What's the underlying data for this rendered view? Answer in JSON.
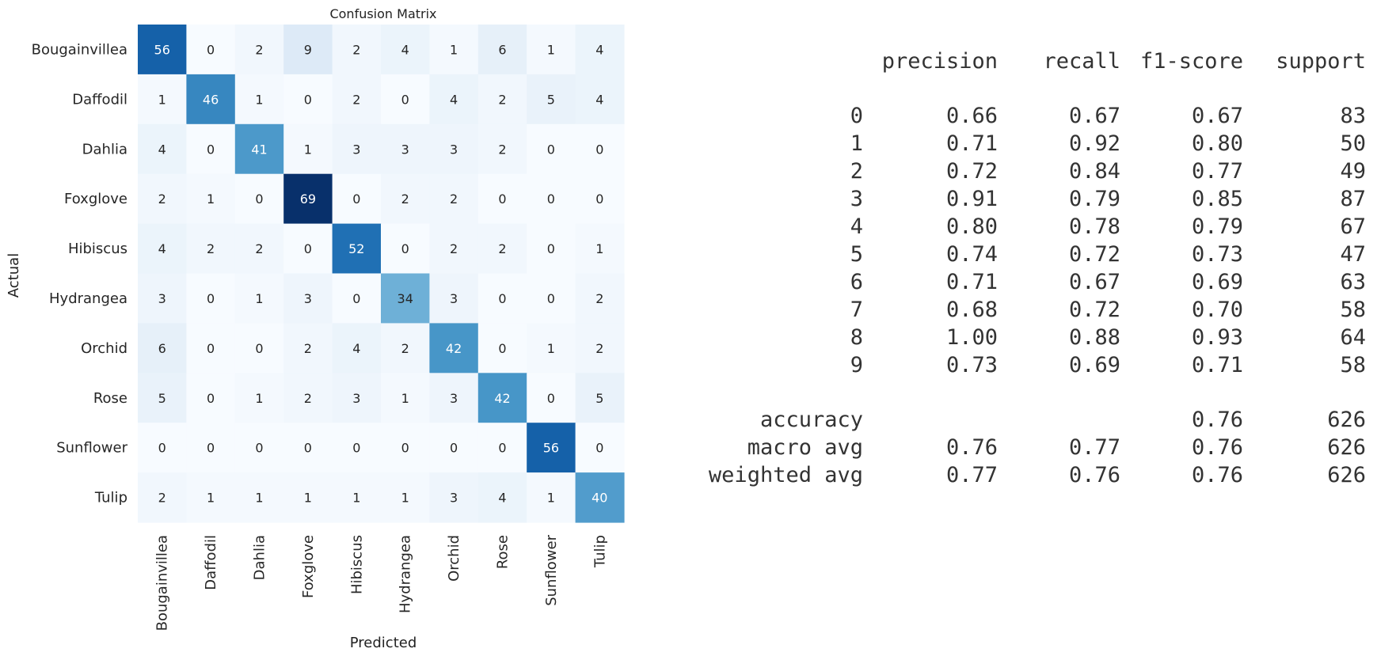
{
  "chart_data": {
    "type": "heatmap",
    "title": "Confusion Matrix",
    "xlabel": "Predicted",
    "ylabel": "Actual",
    "labels": [
      "Bougainvillea",
      "Daffodil",
      "Dahlia",
      "Foxglove",
      "Hibiscus",
      "Hydrangea",
      "Orchid",
      "Rose",
      "Sunflower",
      "Tulip"
    ],
    "matrix": [
      [
        56,
        0,
        2,
        9,
        2,
        4,
        1,
        6,
        1,
        4
      ],
      [
        1,
        46,
        1,
        0,
        2,
        0,
        4,
        2,
        5,
        4
      ],
      [
        4,
        0,
        41,
        1,
        3,
        3,
        3,
        2,
        0,
        0
      ],
      [
        2,
        1,
        0,
        69,
        0,
        2,
        2,
        0,
        0,
        0
      ],
      [
        4,
        2,
        2,
        0,
        52,
        0,
        2,
        2,
        0,
        1
      ],
      [
        3,
        0,
        1,
        3,
        0,
        34,
        3,
        0,
        0,
        2
      ],
      [
        6,
        0,
        0,
        2,
        4,
        2,
        42,
        0,
        1,
        2
      ],
      [
        5,
        0,
        1,
        2,
        3,
        1,
        3,
        42,
        0,
        5
      ],
      [
        0,
        0,
        0,
        0,
        0,
        0,
        0,
        0,
        56,
        0
      ],
      [
        2,
        1,
        1,
        1,
        1,
        1,
        3,
        4,
        1,
        40
      ]
    ],
    "colormap": "Blues",
    "value_range": [
      0,
      69
    ],
    "colorbar": false
  },
  "report": {
    "headers": [
      "",
      "precision",
      "recall",
      "f1-score",
      "support"
    ],
    "rows": [
      [
        "0",
        "0.66",
        "0.67",
        "0.67",
        "83"
      ],
      [
        "1",
        "0.71",
        "0.92",
        "0.80",
        "50"
      ],
      [
        "2",
        "0.72",
        "0.84",
        "0.77",
        "49"
      ],
      [
        "3",
        "0.91",
        "0.79",
        "0.85",
        "87"
      ],
      [
        "4",
        "0.80",
        "0.78",
        "0.79",
        "67"
      ],
      [
        "5",
        "0.74",
        "0.72",
        "0.73",
        "47"
      ],
      [
        "6",
        "0.71",
        "0.67",
        "0.69",
        "63"
      ],
      [
        "7",
        "0.68",
        "0.72",
        "0.70",
        "58"
      ],
      [
        "8",
        "1.00",
        "0.88",
        "0.93",
        "64"
      ],
      [
        "9",
        "0.73",
        "0.69",
        "0.71",
        "58"
      ]
    ],
    "summary": [
      [
        "accuracy",
        "",
        "",
        "0.76",
        "626"
      ],
      [
        "macro avg",
        "0.76",
        "0.77",
        "0.76",
        "626"
      ],
      [
        "weighted avg",
        "0.77",
        "0.76",
        "0.76",
        "626"
      ]
    ]
  }
}
